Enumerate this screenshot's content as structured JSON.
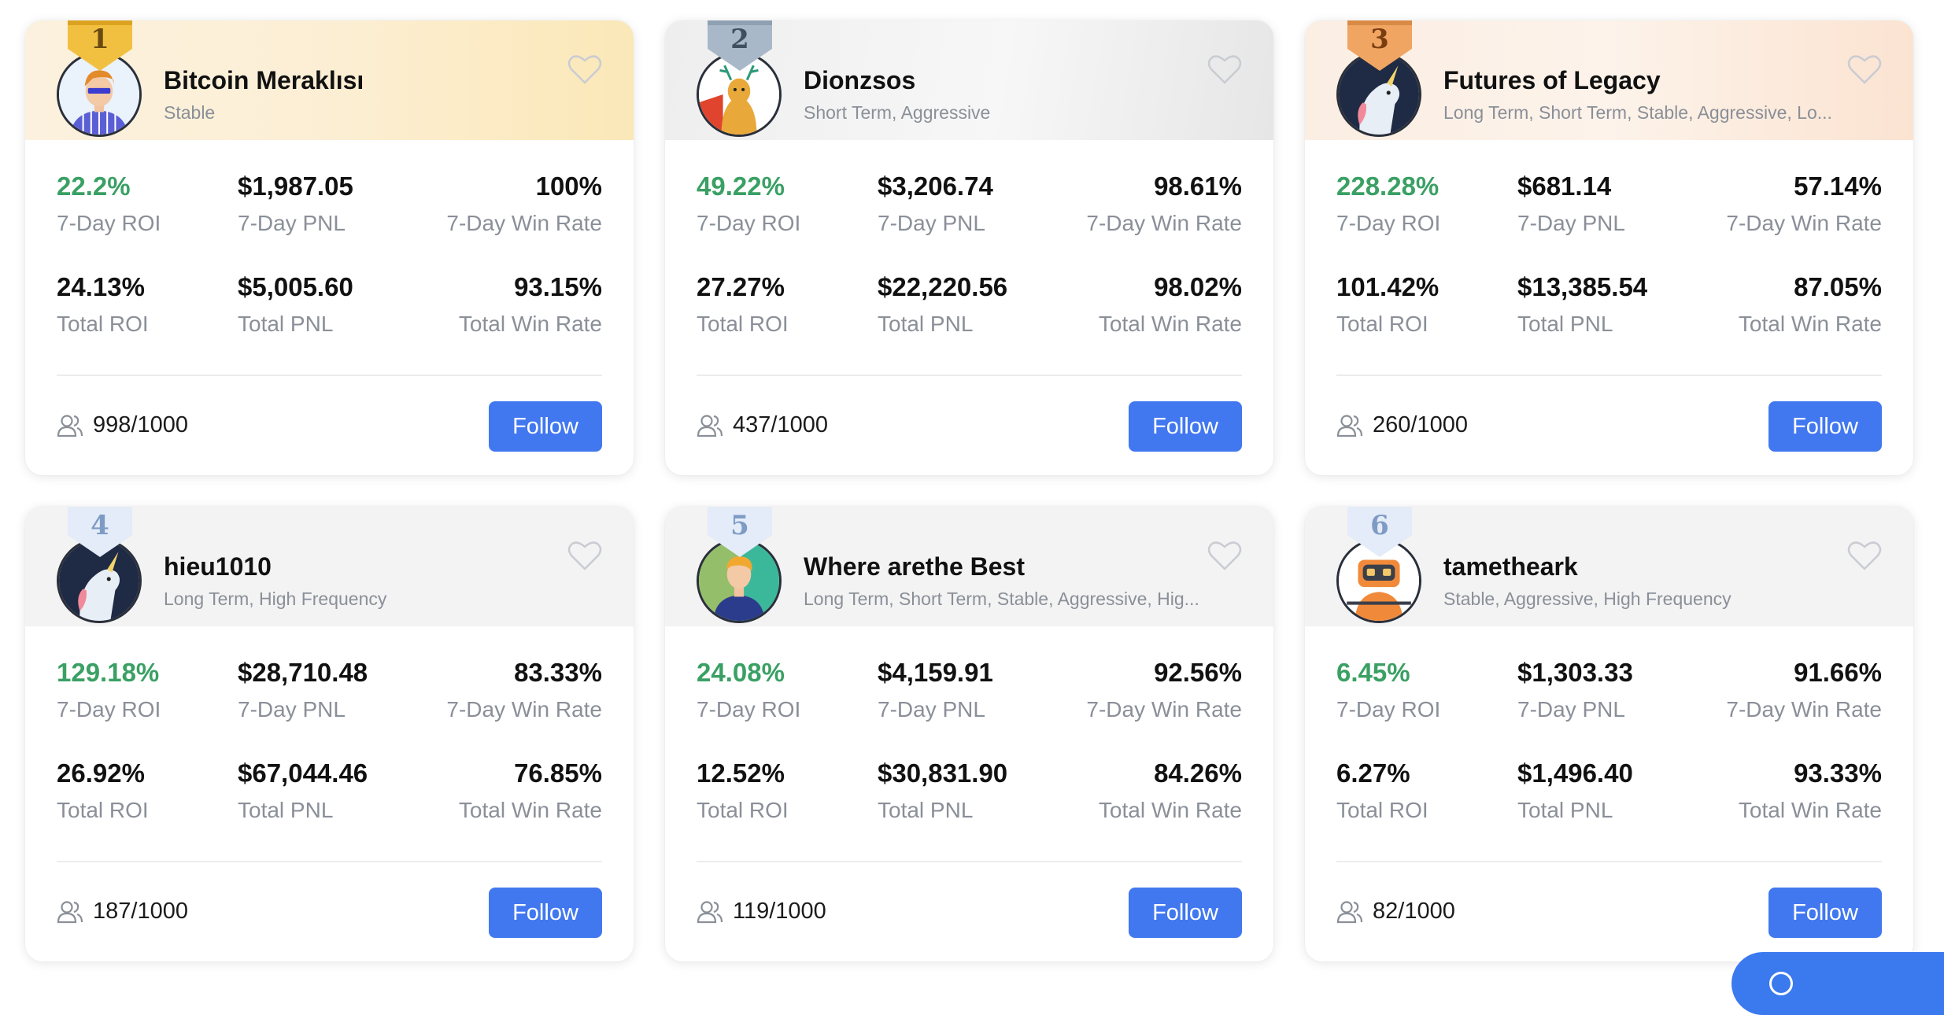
{
  "follow_label": "Follow",
  "colors": {
    "accent": "#4178f0",
    "roi_green": "#3aa064"
  },
  "cards": [
    {
      "rank": "1",
      "medal": "gold",
      "name": "Bitcoin Meraklısı",
      "tags": "Stable",
      "roi7": "22.2%",
      "roi7_label": "7-Day ROI",
      "pnl7": "$1,987.05",
      "pnl7_label": "7-Day PNL",
      "win7": "100%",
      "win7_label": "7-Day Win Rate",
      "roi_total": "24.13%",
      "roi_total_label": "Total ROI",
      "pnl_total": "$5,005.60",
      "pnl_total_label": "Total PNL",
      "win_total": "93.15%",
      "win_total_label": "Total Win Rate",
      "followers": "998/1000"
    },
    {
      "rank": "2",
      "medal": "silver",
      "name": "Dionzsos",
      "tags": "Short Term, Aggressive",
      "roi7": "49.22%",
      "roi7_label": "7-Day ROI",
      "pnl7": "$3,206.74",
      "pnl7_label": "7-Day PNL",
      "win7": "98.61%",
      "win7_label": "7-Day Win Rate",
      "roi_total": "27.27%",
      "roi_total_label": "Total ROI",
      "pnl_total": "$22,220.56",
      "pnl_total_label": "Total PNL",
      "win_total": "98.02%",
      "win_total_label": "Total Win Rate",
      "followers": "437/1000"
    },
    {
      "rank": "3",
      "medal": "bronze",
      "name": "Futures of Legacy",
      "tags": "Long Term, Short Term, Stable, Aggressive, Lo...",
      "roi7": "228.28%",
      "roi7_label": "7-Day ROI",
      "pnl7": "$681.14",
      "pnl7_label": "7-Day PNL",
      "win7": "57.14%",
      "win7_label": "7-Day Win Rate",
      "roi_total": "101.42%",
      "roi_total_label": "Total ROI",
      "pnl_total": "$13,385.54",
      "pnl_total_label": "Total PNL",
      "win_total": "87.05%",
      "win_total_label": "Total Win Rate",
      "followers": "260/1000"
    },
    {
      "rank": "4",
      "medal": "blue",
      "name": "hieu1010",
      "tags": "Long Term, High Frequency",
      "roi7": "129.18%",
      "roi7_label": "7-Day ROI",
      "pnl7": "$28,710.48",
      "pnl7_label": "7-Day PNL",
      "win7": "83.33%",
      "win7_label": "7-Day Win Rate",
      "roi_total": "26.92%",
      "roi_total_label": "Total ROI",
      "pnl_total": "$67,044.46",
      "pnl_total_label": "Total PNL",
      "win_total": "76.85%",
      "win_total_label": "Total Win Rate",
      "followers": "187/1000"
    },
    {
      "rank": "5",
      "medal": "blue",
      "name": "Where arethe Best",
      "tags": "Long Term, Short Term, Stable, Aggressive, Hig...",
      "roi7": "24.08%",
      "roi7_label": "7-Day ROI",
      "pnl7": "$4,159.91",
      "pnl7_label": "7-Day PNL",
      "win7": "92.56%",
      "win7_label": "7-Day Win Rate",
      "roi_total": "12.52%",
      "roi_total_label": "Total ROI",
      "pnl_total": "$30,831.90",
      "pnl_total_label": "Total PNL",
      "win_total": "84.26%",
      "win_total_label": "Total Win Rate",
      "followers": "119/1000"
    },
    {
      "rank": "6",
      "medal": "blue",
      "name": "tametheark",
      "tags": "Stable, Aggressive, High Frequency",
      "roi7": "6.45%",
      "roi7_label": "7-Day ROI",
      "pnl7": "$1,303.33",
      "pnl7_label": "7-Day PNL",
      "win7": "91.66%",
      "win7_label": "7-Day Win Rate",
      "roi_total": "6.27%",
      "roi_total_label": "Total ROI",
      "pnl_total": "$1,496.40",
      "pnl_total_label": "Total PNL",
      "win_total": "93.33%",
      "win_total_label": "Total Win Rate",
      "followers": "82/1000"
    }
  ]
}
